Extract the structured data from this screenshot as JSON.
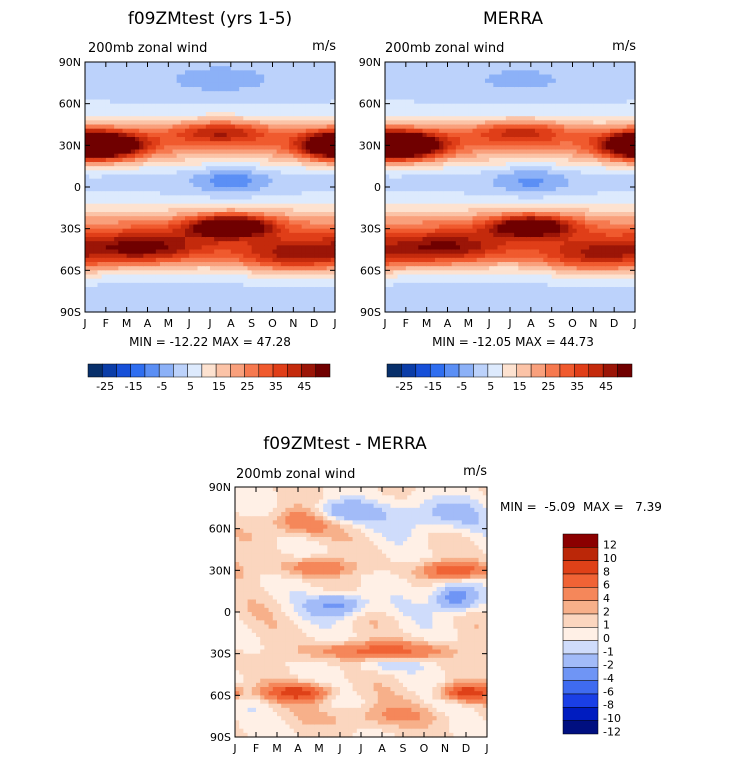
{
  "chart_data": [
    {
      "type": "heatmap",
      "title": "f09ZMtest (yrs 1-5)",
      "subtitle_left": "200mb zonal wind",
      "subtitle_right": "m/s",
      "x_ticks": [
        "J",
        "F",
        "M",
        "A",
        "M",
        "J",
        "J",
        "A",
        "S",
        "O",
        "N",
        "D",
        "J"
      ],
      "y_ticks": [
        "90N",
        "60N",
        "30N",
        "0",
        "30S",
        "60S",
        "90S"
      ],
      "stats": "MIN = -12.22  MAX =  47.28",
      "min": -12.22,
      "max": 47.28,
      "colorbar_labels": [
        "-25",
        "-15",
        "-5",
        "5",
        "15",
        "25",
        "35",
        "45"
      ],
      "features": [
        {
          "lat": 30,
          "month": 1.2,
          "value": 40,
          "lon_spread": 1.8,
          "lat_spread": 10
        },
        {
          "lat": 30,
          "month": 11.8,
          "value": 36,
          "lon_spread": 1.6,
          "lat_spread": 10
        },
        {
          "lat": 40,
          "month": 6.5,
          "value": 25,
          "lon_spread": 2.5,
          "lat_spread": 8
        },
        {
          "lat": 5,
          "month": 7,
          "value": -12,
          "lon_spread": 1.8,
          "lat_spread": 10
        },
        {
          "lat": -28,
          "month": 7,
          "value": 46,
          "lon_spread": 2.0,
          "lat_spread": 8
        },
        {
          "lat": -45,
          "month": 3,
          "value": 30,
          "lon_spread": 3,
          "lat_spread": 12
        },
        {
          "lat": -50,
          "month": 10,
          "value": 30,
          "lon_spread": 3,
          "lat_spread": 12
        },
        {
          "lat": 75,
          "month": 6.5,
          "value": -5,
          "lon_spread": 3,
          "lat_spread": 10
        }
      ]
    },
    {
      "type": "heatmap",
      "title": "MERRA",
      "subtitle_left": "200mb zonal wind",
      "subtitle_right": "m/s",
      "x_ticks": [
        "J",
        "F",
        "M",
        "A",
        "M",
        "J",
        "J",
        "A",
        "S",
        "O",
        "N",
        "D",
        "J"
      ],
      "y_ticks": [
        "90N",
        "60N",
        "30N",
        "0",
        "30S",
        "60S",
        "90S"
      ],
      "stats": "MIN = -12.05  MAX =  44.73",
      "min": -12.05,
      "max": 44.73,
      "colorbar_labels": [
        "-25",
        "-15",
        "-5",
        "5",
        "15",
        "25",
        "35",
        "45"
      ],
      "features": [
        {
          "lat": 30,
          "month": 1.2,
          "value": 42,
          "lon_spread": 1.8,
          "lat_spread": 10
        },
        {
          "lat": 30,
          "month": 11.8,
          "value": 34,
          "lon_spread": 1.6,
          "lat_spread": 10
        },
        {
          "lat": 40,
          "month": 6.5,
          "value": 22,
          "lon_spread": 2.5,
          "lat_spread": 8
        },
        {
          "lat": 5,
          "month": 7,
          "value": -10,
          "lon_spread": 1.8,
          "lat_spread": 10
        },
        {
          "lat": -28,
          "month": 7,
          "value": 40,
          "lon_spread": 2.0,
          "lat_spread": 8
        },
        {
          "lat": -45,
          "month": 3,
          "value": 28,
          "lon_spread": 3,
          "lat_spread": 12
        },
        {
          "lat": -50,
          "month": 10,
          "value": 28,
          "lon_spread": 3,
          "lat_spread": 12
        },
        {
          "lat": 75,
          "month": 6.5,
          "value": -4,
          "lon_spread": 3,
          "lat_spread": 10
        }
      ]
    },
    {
      "type": "heatmap",
      "title": "f09ZMtest - MERRA",
      "subtitle_left": "200mb zonal wind",
      "subtitle_right": "m/s",
      "x_ticks": [
        "J",
        "F",
        "M",
        "A",
        "M",
        "J",
        "J",
        "A",
        "S",
        "O",
        "N",
        "D",
        "J"
      ],
      "y_ticks": [
        "90N",
        "60N",
        "30N",
        "0",
        "30S",
        "60S",
        "90S"
      ],
      "stats": "MIN =  -5.09  MAX =   7.39",
      "min": -5.09,
      "max": 7.39,
      "colorbar_labels": [
        "12",
        "10",
        "8",
        "6",
        "4",
        "2",
        "1",
        "0",
        "-1",
        "-2",
        "-4",
        "-6",
        "-8",
        "-10",
        "-12"
      ],
      "features": [
        {
          "lat": 65,
          "month": 3,
          "value": 4,
          "lon_spread": 1.5,
          "lat_spread": 10
        },
        {
          "lat": 72,
          "month": 5,
          "value": -4,
          "lon_spread": 1.5,
          "lat_spread": 8
        },
        {
          "lat": 70,
          "month": 9.5,
          "value": -3,
          "lon_spread": 2,
          "lat_spread": 12
        },
        {
          "lat": 32,
          "month": 4,
          "value": 4,
          "lon_spread": 1.5,
          "lat_spread": 6
        },
        {
          "lat": 30,
          "month": 10.5,
          "value": 6,
          "lon_spread": 1.5,
          "lat_spread": 6
        },
        {
          "lat": 5,
          "month": 5,
          "value": -5,
          "lon_spread": 1.3,
          "lat_spread": 8
        },
        {
          "lat": 10,
          "month": 10.5,
          "value": -6,
          "lon_spread": 1.0,
          "lat_spread": 10
        },
        {
          "lat": -28,
          "month": 7,
          "value": 5,
          "lon_spread": 3,
          "lat_spread": 6
        },
        {
          "lat": -38,
          "month": 7.5,
          "value": -2,
          "lon_spread": 1.5,
          "lat_spread": 5
        },
        {
          "lat": -58,
          "month": 3,
          "value": 7,
          "lon_spread": 1.5,
          "lat_spread": 6
        },
        {
          "lat": -58,
          "month": 11,
          "value": 7,
          "lon_spread": 1.2,
          "lat_spread": 6
        },
        {
          "lat": -75,
          "month": 7,
          "value": 2,
          "lon_spread": 3,
          "lat_spread": 8
        }
      ]
    }
  ],
  "colors": {
    "main_scale": [
      "#08306b",
      "#0b3da8",
      "#1750d8",
      "#2f6ef0",
      "#5b8ff5",
      "#8cb1f7",
      "#bcd2fb",
      "#ddeafd",
      "#fde2d0",
      "#fbc3a7",
      "#f9a07c",
      "#f6794f",
      "#f05a2e",
      "#e03e18",
      "#c42a0c",
      "#9b1507",
      "#700000"
    ],
    "diff_scale": [
      "#000f80",
      "#001cc0",
      "#1a3fe6",
      "#3f6bf0",
      "#6f95f5",
      "#a2bbf8",
      "#cfdcfb",
      "#fff0e6",
      "#fbd6bf",
      "#f7b08a",
      "#f5875a",
      "#f06335",
      "#df4118",
      "#bb2708",
      "#8b0000"
    ]
  }
}
